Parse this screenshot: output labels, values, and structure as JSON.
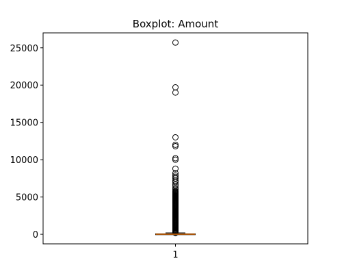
{
  "chart_data": {
    "type": "box",
    "title": "Boxplot: Amount",
    "xlabel": "",
    "ylabel": "",
    "categories": [
      "1"
    ],
    "ylim": [
      -1280,
      27000
    ],
    "yticks": [
      0,
      5000,
      10000,
      15000,
      20000,
      25000
    ],
    "ytick_labels": [
      "0",
      "5000",
      "10000",
      "15000",
      "20000",
      "25000"
    ],
    "grid": false,
    "box": {
      "q1": 5,
      "median": 22,
      "q3": 77,
      "whisker_low": 0,
      "whisker_high": 185
    },
    "outliers_dense_range": [
      185,
      5800
    ],
    "outliers": [
      6000,
      6200,
      6500,
      6700,
      7000,
      7200,
      7500,
      7700,
      7900,
      8200,
      8800,
      10000,
      10200,
      11800,
      12000,
      13000,
      19000,
      19700,
      25700
    ],
    "colors": {
      "box": "#000000",
      "median": "#ff7f0e",
      "outlier_edge": "#000000"
    }
  }
}
